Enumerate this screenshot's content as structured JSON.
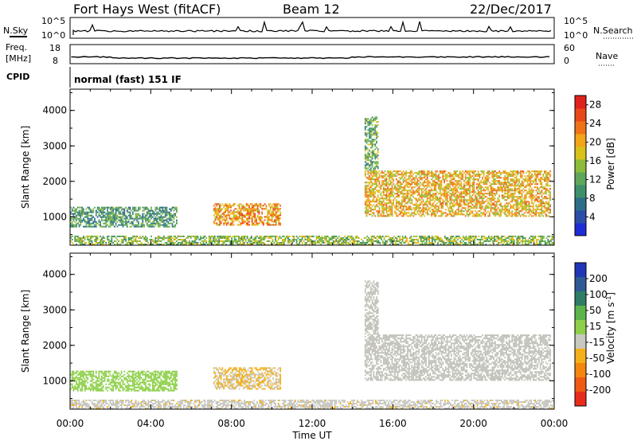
{
  "header": {
    "station": "Fort Hays West (fitACF)",
    "beam": "Beam 12",
    "date": "22/Dec/2017"
  },
  "aux": {
    "nsky_label": "N.Sky",
    "nsearch_label": "N.Search",
    "nsky_ticks": [
      "10^5",
      "10^0"
    ],
    "nsearch_ticks": [
      "10^5",
      "10^0"
    ],
    "freq_label_1": "Freq.",
    "freq_label_2": "[MHz]",
    "freq_ticks": [
      "18",
      "8"
    ],
    "nave_label": "Nave",
    "nave_ticks": [
      "60",
      "0"
    ],
    "cpid_label": "CPID",
    "cpid_text": "normal (fast) 151 IF"
  },
  "colors": {
    "power_scale": [
      "#1f2bd6",
      "#2b4fa8",
      "#2e6e8a",
      "#3e8f6a",
      "#5ea75a",
      "#8cbd3a",
      "#d8c21a",
      "#f3a418",
      "#f07216",
      "#e8481a",
      "#e0221e"
    ],
    "velocity_scale": [
      "#2137b8",
      "#2f5a96",
      "#2f7d66",
      "#5bb34a",
      "#8ed04a",
      "#c8c8c0",
      "#f3b01a",
      "#f5860f",
      "#ef5a14",
      "#e82c1c"
    ],
    "ground_scatter": "#c0c0b8"
  },
  "chart_data": [
    {
      "type": "heatmap",
      "panel": "power",
      "ylabel": "Slant Range [km]",
      "yticks": [
        "1000",
        "2000",
        "3000",
        "4000"
      ],
      "ylim": [
        200,
        4600
      ],
      "xlim": [
        0,
        24
      ],
      "xticks": [
        "00:00",
        "04:00",
        "08:00",
        "12:00",
        "16:00",
        "20:00",
        "00:00"
      ],
      "colorbar_label": "Power [dB]",
      "colorbar_ticks": [
        "4",
        "8",
        "12",
        "16",
        "20",
        "24",
        "28"
      ],
      "colorbar_range": [
        0,
        30
      ],
      "regions": [
        {
          "t0": 0.0,
          "t1": 5.3,
          "r0": 700,
          "r1": 1280,
          "level": 10
        },
        {
          "t0": 7.1,
          "t1": 10.4,
          "r0": 750,
          "r1": 1350,
          "level": 22
        },
        {
          "t0": 0.0,
          "t1": 24.0,
          "r0": 200,
          "r1": 450,
          "level": 14
        },
        {
          "t0": 14.6,
          "t1": 23.8,
          "r0": 1000,
          "r1": 2300,
          "level": 20
        },
        {
          "t0": 14.6,
          "t1": 15.3,
          "r0": 2300,
          "r1": 3800,
          "level": 12
        }
      ]
    },
    {
      "type": "heatmap",
      "panel": "velocity",
      "ylabel": "Slant Range [km]",
      "yticks": [
        "1000",
        "2000",
        "3000",
        "4000"
      ],
      "ylim": [
        200,
        4600
      ],
      "xlim": [
        0,
        24
      ],
      "xticks": [
        "00:00",
        "04:00",
        "08:00",
        "12:00",
        "16:00",
        "20:00",
        "00:00"
      ],
      "xlabel": "Time UT",
      "colorbar_label": "Velocity [m s^-1]",
      "colorbar_ticks": [
        "200",
        "100",
        "50",
        "15",
        "-15",
        "-50",
        "-100",
        "-200"
      ],
      "colorbar_range": [
        -250,
        250
      ],
      "regions": [
        {
          "t0": 0.0,
          "t1": 5.3,
          "r0": 700,
          "r1": 1280,
          "velocity": 30
        },
        {
          "t0": 7.1,
          "t1": 10.4,
          "r0": 750,
          "r1": 1350,
          "velocity": -60
        },
        {
          "t0": 0.0,
          "t1": 24.0,
          "r0": 200,
          "r1": 450,
          "velocity": -40
        },
        {
          "t0": 14.6,
          "t1": 23.8,
          "r0": 1000,
          "r1": 2300,
          "velocity": 0
        },
        {
          "t0": 14.6,
          "t1": 15.3,
          "r0": 2300,
          "r1": 3800,
          "velocity": 0
        }
      ]
    }
  ]
}
